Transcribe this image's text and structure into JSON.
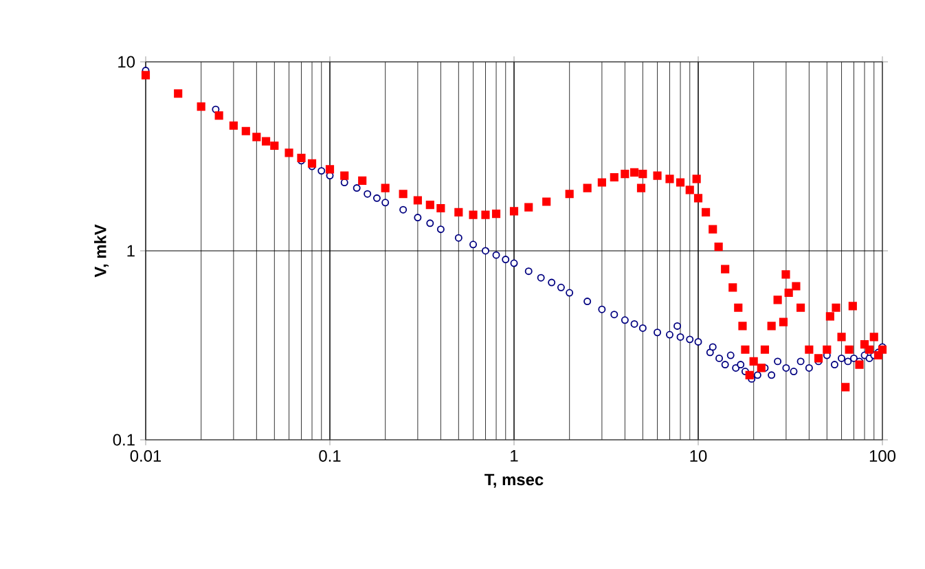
{
  "chart_data": {
    "type": "scatter",
    "xlabel": "T, msec",
    "ylabel": "V, mkV",
    "log": "xy",
    "grid": true,
    "xlim": [
      0.01,
      100
    ],
    "ylim": [
      0.1,
      10
    ],
    "xticks": [
      0.01,
      0.1,
      1,
      10,
      100
    ],
    "yticks": [
      0.1,
      1,
      10
    ],
    "series": [
      {
        "color": "#000080",
        "marker": "circle",
        "x": [
          0.01,
          0.024,
          0.07,
          0.08,
          0.09,
          0.1,
          0.12,
          0.14,
          0.16,
          0.18,
          0.2,
          0.25,
          0.3,
          0.35,
          0.4,
          0.5,
          0.6,
          0.7,
          0.8,
          0.9,
          1.0,
          1.2,
          1.4,
          1.6,
          1.8,
          2,
          2.5,
          3,
          3.5,
          4,
          4.5,
          5,
          6,
          7,
          7.7,
          8,
          9,
          10,
          11.6,
          12,
          13,
          14,
          15,
          16,
          17,
          18,
          19.5,
          21,
          23,
          25,
          27,
          30,
          33,
          36,
          40,
          45,
          50,
          55,
          60,
          65,
          70,
          75,
          80,
          85,
          90,
          95,
          100
        ],
        "values": [
          9.0,
          5.6,
          3.0,
          2.8,
          2.65,
          2.5,
          2.3,
          2.15,
          2.0,
          1.9,
          1.8,
          1.65,
          1.5,
          1.4,
          1.3,
          1.17,
          1.08,
          1.0,
          0.95,
          0.9,
          0.86,
          0.78,
          0.72,
          0.68,
          0.64,
          0.6,
          0.54,
          0.49,
          0.46,
          0.43,
          0.41,
          0.39,
          0.37,
          0.36,
          0.4,
          0.35,
          0.34,
          0.33,
          0.29,
          0.31,
          0.27,
          0.25,
          0.28,
          0.24,
          0.25,
          0.23,
          0.21,
          0.22,
          0.24,
          0.22,
          0.26,
          0.24,
          0.23,
          0.26,
          0.24,
          0.26,
          0.28,
          0.25,
          0.27,
          0.26,
          0.27,
          0.26,
          0.28,
          0.27,
          0.28,
          0.29,
          0.31
        ]
      },
      {
        "color": "#ff0000",
        "marker": "square",
        "x": [
          0.01,
          0.015,
          0.02,
          0.025,
          0.03,
          0.035,
          0.04,
          0.045,
          0.05,
          0.06,
          0.07,
          0.08,
          0.1,
          0.12,
          0.15,
          0.2,
          0.25,
          0.3,
          0.35,
          0.4,
          0.5,
          0.6,
          0.7,
          0.8,
          1.0,
          1.2,
          1.5,
          2,
          2.5,
          3,
          3.5,
          4,
          4.5,
          4.9,
          5,
          6,
          7,
          8,
          9,
          9.8,
          10,
          11,
          12,
          12.9,
          14,
          15.4,
          16.5,
          17.4,
          18,
          19,
          20,
          22,
          23,
          25,
          27,
          29,
          29.9,
          31,
          34,
          36,
          40,
          45,
          50,
          52,
          56,
          60,
          63,
          66,
          69,
          75,
          80,
          85,
          90,
          95,
          100
        ],
        "values": [
          8.5,
          6.8,
          5.8,
          5.2,
          4.6,
          4.3,
          4.0,
          3.8,
          3.6,
          3.3,
          3.1,
          2.9,
          2.7,
          2.5,
          2.35,
          2.15,
          2.0,
          1.85,
          1.75,
          1.68,
          1.6,
          1.55,
          1.55,
          1.57,
          1.62,
          1.7,
          1.82,
          2.0,
          2.15,
          2.3,
          2.45,
          2.55,
          2.6,
          2.15,
          2.55,
          2.5,
          2.4,
          2.3,
          2.1,
          2.4,
          1.9,
          1.6,
          1.3,
          1.05,
          0.8,
          0.64,
          0.5,
          0.4,
          0.3,
          0.22,
          0.26,
          0.24,
          0.3,
          0.4,
          0.55,
          0.42,
          0.75,
          0.6,
          0.65,
          0.5,
          0.3,
          0.27,
          0.3,
          0.45,
          0.5,
          0.35,
          0.19,
          0.3,
          0.51,
          0.25,
          0.32,
          0.3,
          0.35,
          0.28,
          0.3
        ]
      }
    ]
  }
}
